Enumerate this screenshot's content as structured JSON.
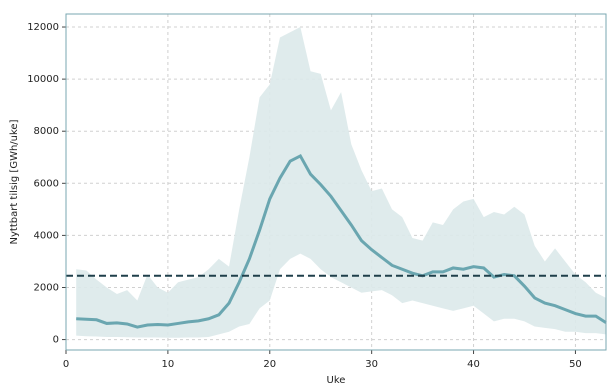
{
  "chart_data": {
    "type": "line",
    "y_label": "Nyttbart tilsig [GWh/uke]",
    "x_label": "Uke",
    "x": [
      1,
      2,
      3,
      4,
      5,
      6,
      7,
      8,
      9,
      10,
      11,
      12,
      13,
      14,
      15,
      16,
      17,
      18,
      19,
      20,
      21,
      22,
      23,
      24,
      25,
      26,
      27,
      28,
      29,
      30,
      31,
      32,
      33,
      34,
      35,
      36,
      37,
      38,
      39,
      40,
      41,
      42,
      43,
      44,
      45,
      46,
      47,
      48,
      49,
      50,
      51,
      52,
      53
    ],
    "series": [
      {
        "color": "#6aa6b0",
        "values": [
          800,
          780,
          760,
          620,
          640,
          600,
          480,
          560,
          580,
          560,
          620,
          680,
          720,
          800,
          950,
          1400,
          2200,
          3100,
          4200,
          5400,
          6200,
          6850,
          7050,
          6350,
          5950,
          5500,
          4950,
          4400,
          3800,
          3450,
          3150,
          2850,
          2700,
          2550,
          2450,
          2600,
          2600,
          2750,
          2700,
          2800,
          2750,
          2400,
          2500,
          2450,
          2050,
          1600,
          1400,
          1300,
          1150,
          1000,
          900,
          900,
          650
        ]
      }
    ],
    "band": {
      "color": "#dbe9ea",
      "upper": [
        2700,
        2650,
        2300,
        2000,
        1750,
        1900,
        1500,
        2500,
        2000,
        1800,
        2200,
        2300,
        2400,
        2700,
        3100,
        2800,
        5000,
        7000,
        9300,
        9800,
        11600,
        11800,
        12000,
        10300,
        10200,
        8800,
        9500,
        7500,
        6500,
        5700,
        5800,
        5000,
        4700,
        3900,
        3800,
        4500,
        4400,
        5000,
        5300,
        5400,
        4700,
        4900,
        4800,
        5100,
        4800,
        3600,
        3000,
        3500,
        3000,
        2500,
        2200,
        1800,
        1600
      ],
      "lower": [
        150,
        130,
        120,
        100,
        100,
        90,
        80,
        80,
        80,
        70,
        70,
        80,
        80,
        100,
        200,
        300,
        500,
        600,
        1200,
        1500,
        2700,
        3100,
        3300,
        3100,
        2700,
        2400,
        2200,
        2000,
        1800,
        1850,
        1900,
        1700,
        1400,
        1500,
        1400,
        1300,
        1200,
        1100,
        1200,
        1300,
        1000,
        700,
        800,
        800,
        700,
        500,
        450,
        400,
        300,
        300,
        250,
        250,
        200
      ]
    },
    "hline": {
      "value": 2450,
      "color": "#1f3f4a"
    },
    "xlim": [
      0,
      53
    ],
    "ylim": [
      -400,
      12500
    ],
    "xticks": [
      0,
      10,
      20,
      30,
      40,
      50
    ],
    "yticks": [
      0,
      2000,
      4000,
      6000,
      8000,
      10000,
      12000
    ],
    "grid": true
  }
}
